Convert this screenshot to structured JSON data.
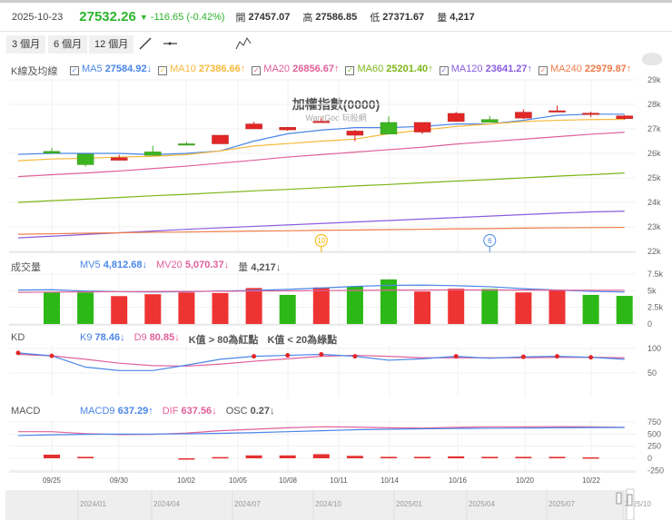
{
  "quote": {
    "date": "2025-10-23",
    "price": "27532.26",
    "change": "-116.65 (-0.42%)",
    "open_label": "開",
    "open": "27457.07",
    "high_label": "高",
    "high": "27586.85",
    "low_label": "低",
    "low": "27371.67",
    "vol_label": "量",
    "volume": "4,217",
    "down_color": "#2bb52b"
  },
  "toolbar": {
    "ranges": [
      "3 個月",
      "6 個月",
      "12 個月"
    ],
    "tools": [
      "trend-line-icon",
      "horizontal-line-icon",
      "abcd-pattern-icon"
    ]
  },
  "legend": {
    "title": "K線及均線",
    "items": [
      {
        "name": "MA5",
        "value": "27584.92",
        "arrow": "↓",
        "color": "#4a86e8"
      },
      {
        "name": "MA10",
        "value": "27386.66",
        "arrow": "↑",
        "color": "#f6b93b"
      },
      {
        "name": "MA20",
        "value": "26856.67",
        "arrow": "↑",
        "color": "#e0609a"
      },
      {
        "name": "MA60",
        "value": "25201.40",
        "arrow": "↑",
        "color": "#7cb518"
      },
      {
        "name": "MA120",
        "value": "23641.27",
        "arrow": "↑",
        "color": "#8a5ce0"
      },
      {
        "name": "MA240",
        "value": "22979.87",
        "arrow": "↑",
        "color": "#f07c4a"
      }
    ]
  },
  "chart": {
    "title": "加權指數(0000)",
    "subtitle": "WantGoo 玩股網",
    "watermark": "玩股網",
    "up_color": "#e32626",
    "down_color": "#3cb521",
    "price_ticks": [
      "29k",
      "28k",
      "27k",
      "26k",
      "25k",
      "24k",
      "23k",
      "22k"
    ],
    "events": [
      {
        "label": "10",
        "color": "#f4b400",
        "index": 8
      },
      {
        "label": "6",
        "color": "#4a86e8",
        "index": 13
      }
    ],
    "x_labels": [
      "09/25",
      "09/30",
      "10/02",
      "10/05",
      "10/08",
      "10/11",
      "10/14",
      "10/16",
      "10/20",
      "10/22"
    ],
    "candles": [
      {
        "o": 26080,
        "h": 26230,
        "l": 26000,
        "c": 26010
      },
      {
        "o": 25970,
        "h": 25970,
        "l": 25460,
        "c": 25540
      },
      {
        "o": 25720,
        "h": 25940,
        "l": 25720,
        "c": 25820
      },
      {
        "o": 26060,
        "h": 26310,
        "l": 25920,
        "c": 25920
      },
      {
        "o": 26390,
        "h": 26470,
        "l": 26340,
        "c": 26340
      },
      {
        "o": 26390,
        "h": 26740,
        "l": 26390,
        "c": 26740
      },
      {
        "o": 27000,
        "h": 27290,
        "l": 27000,
        "c": 27200
      },
      {
        "o": 26960,
        "h": 27080,
        "l": 26920,
        "c": 27060
      },
      {
        "o": 27270,
        "h": 27440,
        "l": 27270,
        "c": 27310
      },
      {
        "o": 26740,
        "h": 26960,
        "l": 26490,
        "c": 26910
      },
      {
        "o": 27260,
        "h": 27510,
        "l": 26790,
        "c": 26790
      },
      {
        "o": 26870,
        "h": 27260,
        "l": 26790,
        "c": 27260
      },
      {
        "o": 27300,
        "h": 27700,
        "l": 27300,
        "c": 27630
      },
      {
        "o": 27380,
        "h": 27530,
        "l": 27270,
        "c": 27270
      },
      {
        "o": 27440,
        "h": 27800,
        "l": 27400,
        "c": 27680
      },
      {
        "o": 27700,
        "h": 27950,
        "l": 27700,
        "c": 27740
      },
      {
        "o": 27600,
        "h": 27700,
        "l": 27480,
        "c": 27640
      },
      {
        "o": 27420,
        "h": 27560,
        "l": 27370,
        "c": 27530
      }
    ],
    "ma": {
      "MA5": [
        25960,
        26000,
        26000,
        26000,
        25950,
        26000,
        26100,
        26500,
        26800,
        26950,
        27050,
        27050,
        27100,
        27200,
        27200,
        27350,
        27550,
        27600,
        27600
      ],
      "MA10": [
        25700,
        25770,
        25800,
        25850,
        25880,
        25950,
        26100,
        26300,
        26400,
        26500,
        26580,
        26800,
        26950,
        27100,
        27200,
        27300,
        27350,
        27380,
        27390
      ],
      "MA20": [
        25050,
        25130,
        25200,
        25280,
        25380,
        25480,
        25600,
        25720,
        25850,
        25950,
        26050,
        26150,
        26250,
        26380,
        26480,
        26580,
        26680,
        26780,
        26860
      ],
      "MA60": [
        24000,
        24070,
        24130,
        24200,
        24270,
        24330,
        24400,
        24470,
        24530,
        24600,
        24670,
        24730,
        24800,
        24870,
        24930,
        25000,
        25070,
        25130,
        25200
      ],
      "MA120": [
        22550,
        22620,
        22690,
        22760,
        22830,
        22900,
        22960,
        23020,
        23080,
        23140,
        23200,
        23260,
        23320,
        23380,
        23440,
        23500,
        23560,
        23610,
        23640
      ],
      "MA240": [
        22700,
        22720,
        22740,
        22760,
        22780,
        22790,
        22810,
        22830,
        22840,
        22860,
        22870,
        22890,
        22900,
        22920,
        22930,
        22950,
        22960,
        22970,
        22980
      ]
    }
  },
  "volume": {
    "title": "成交量",
    "mv5": {
      "name": "MV5",
      "value": "4,812.68",
      "arrow": "↓",
      "color": "#4a86e8"
    },
    "mv20": {
      "name": "MV20",
      "value": "5,070.37",
      "arrow": "↓",
      "color": "#e0609a"
    },
    "vol": {
      "name": "量",
      "value": "4,217",
      "arrow": "↓"
    },
    "ticks": [
      "7.5k",
      "5k",
      "2.5k",
      "0"
    ],
    "bars": [
      {
        "v": 4740,
        "up": false
      },
      {
        "v": 4740,
        "up": false
      },
      {
        "v": 4190,
        "up": true
      },
      {
        "v": 4470,
        "up": true
      },
      {
        "v": 4740,
        "up": true
      },
      {
        "v": 4650,
        "up": true
      },
      {
        "v": 5400,
        "up": true
      },
      {
        "v": 4370,
        "up": false
      },
      {
        "v": 5490,
        "up": true
      },
      {
        "v": 5670,
        "up": false
      },
      {
        "v": 6700,
        "up": false
      },
      {
        "v": 4880,
        "up": true
      },
      {
        "v": 5300,
        "up": true
      },
      {
        "v": 5260,
        "up": false
      },
      {
        "v": 4740,
        "up": true
      },
      {
        "v": 5070,
        "up": true
      },
      {
        "v": 4370,
        "up": false
      },
      {
        "v": 4217,
        "up": false
      }
    ],
    "mv5_line": [
      5100,
      5150,
      4950,
      4850,
      4800,
      4850,
      4950,
      5050,
      5200,
      5400,
      5650,
      5800,
      5850,
      5750,
      5600,
      5300,
      5100,
      4900,
      4810
    ],
    "mv20_line": [
      4750,
      4800,
      4820,
      4850,
      4870,
      4900,
      4920,
      4950,
      4980,
      5000,
      5050,
      5080,
      5100,
      5120,
      5100,
      5100,
      5080,
      5070,
      5070
    ]
  },
  "kd": {
    "title": "KD",
    "k9": {
      "name": "K9",
      "value": "78.46",
      "arrow": "↓",
      "color": "#4a86e8"
    },
    "d9": {
      "name": "D9",
      "value": "80.85",
      "arrow": "↓",
      "color": "#e0609a"
    },
    "note1": "K值 > 80為紅點",
    "note2": "K值 < 20為綠點",
    "ticks": [
      "100",
      "50"
    ],
    "k_line": [
      91,
      85,
      62,
      55,
      55,
      66,
      78,
      84,
      86,
      88,
      84,
      76,
      79,
      84,
      80,
      83,
      84,
      82,
      78
    ],
    "d_line": [
      88,
      85,
      78,
      70,
      65,
      64,
      68,
      74,
      79,
      84,
      86,
      84,
      81,
      81,
      81,
      81,
      82,
      82,
      81
    ]
  },
  "macd": {
    "title": "MACD",
    "macd9": {
      "name": "MACD9",
      "value": "637.29",
      "arrow": "↑",
      "color": "#4a86e8"
    },
    "dif": {
      "name": "DIF",
      "value": "637.56",
      "arrow": "↓",
      "color": "#e0609a"
    },
    "osc": {
      "name": "OSC",
      "value": "0.27",
      "arrow": "↓"
    },
    "ticks": [
      "750",
      "500",
      "250",
      "0",
      "-250"
    ],
    "macd9_line": [
      470,
      485,
      495,
      500,
      500,
      505,
      515,
      530,
      550,
      570,
      590,
      600,
      610,
      615,
      620,
      625,
      630,
      635,
      637
    ],
    "dif_line": [
      550,
      550,
      510,
      490,
      495,
      520,
      570,
      600,
      630,
      650,
      645,
      630,
      625,
      640,
      650,
      650,
      655,
      650,
      637
    ],
    "osc_bars": [
      75,
      30,
      0,
      0,
      -12,
      25,
      60,
      60,
      85,
      50,
      30,
      30,
      40,
      30,
      30,
      30,
      20,
      0
    ]
  },
  "navigator": {
    "labels": [
      "2024/01",
      "2024/04",
      "2024/07",
      "2024/10",
      "2025/01",
      "2025/04",
      "2025/07",
      "2025/10"
    ]
  }
}
